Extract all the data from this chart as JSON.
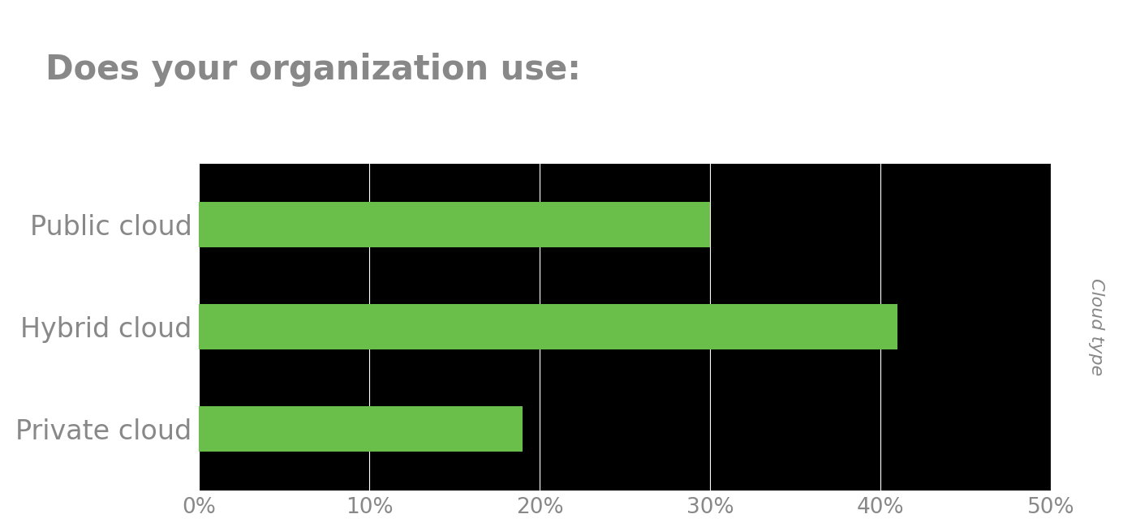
{
  "title": "Does your organization use:",
  "categories": [
    "Public cloud",
    "Hybrid cloud",
    "Private cloud"
  ],
  "values": [
    30,
    41,
    19
  ],
  "bar_color": "#6abf4b",
  "background_color": "#000000",
  "title_color": "#888888",
  "label_color": "#888888",
  "tick_color": "#888888",
  "grid_color": "#ffffff",
  "ylabel": "Cloud type",
  "xlim": [
    0,
    50
  ],
  "xticks": [
    0,
    10,
    20,
    30,
    40,
    50
  ],
  "xtick_labels": [
    "0%",
    "10%",
    "20%",
    "30%",
    "40%",
    "50%"
  ],
  "title_fontsize": 30,
  "label_fontsize": 24,
  "tick_fontsize": 19,
  "ylabel_fontsize": 16
}
